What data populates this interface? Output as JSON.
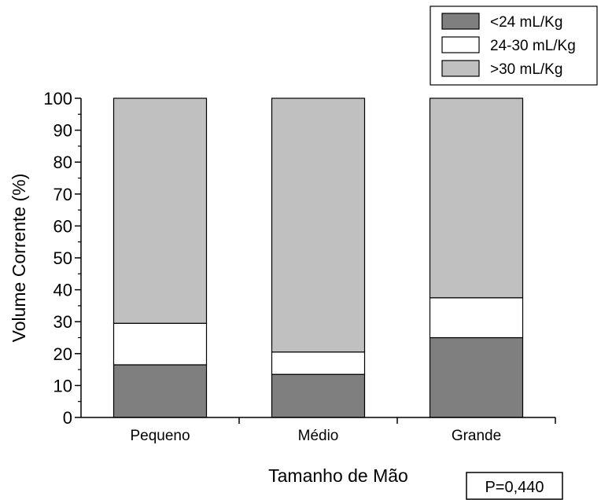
{
  "chart_data": {
    "type": "bar",
    "stacked": true,
    "title": "",
    "xlabel": "Tamanho de Mão",
    "ylabel": "Volume Corrente (%)",
    "ylim": [
      0,
      100
    ],
    "yticks": [
      0,
      10,
      20,
      30,
      40,
      50,
      60,
      70,
      80,
      90,
      100
    ],
    "categories": [
      "Pequeno",
      "Médio",
      "Grande"
    ],
    "series": [
      {
        "name": "<24 mL/Kg",
        "values": [
          16.5,
          13.5,
          25.0
        ],
        "color": "#7f7f7f"
      },
      {
        "name": "24-30 mL/Kg",
        "values": [
          13.0,
          7.0,
          12.5
        ],
        "color": "#ffffff"
      },
      {
        "name": ">30 mL/Kg",
        "values": [
          70.5,
          79.5,
          62.5
        ],
        "color": "#c0c0c0"
      }
    ],
    "grid": false,
    "legend": "top-right",
    "annotation": "P=0,440"
  }
}
